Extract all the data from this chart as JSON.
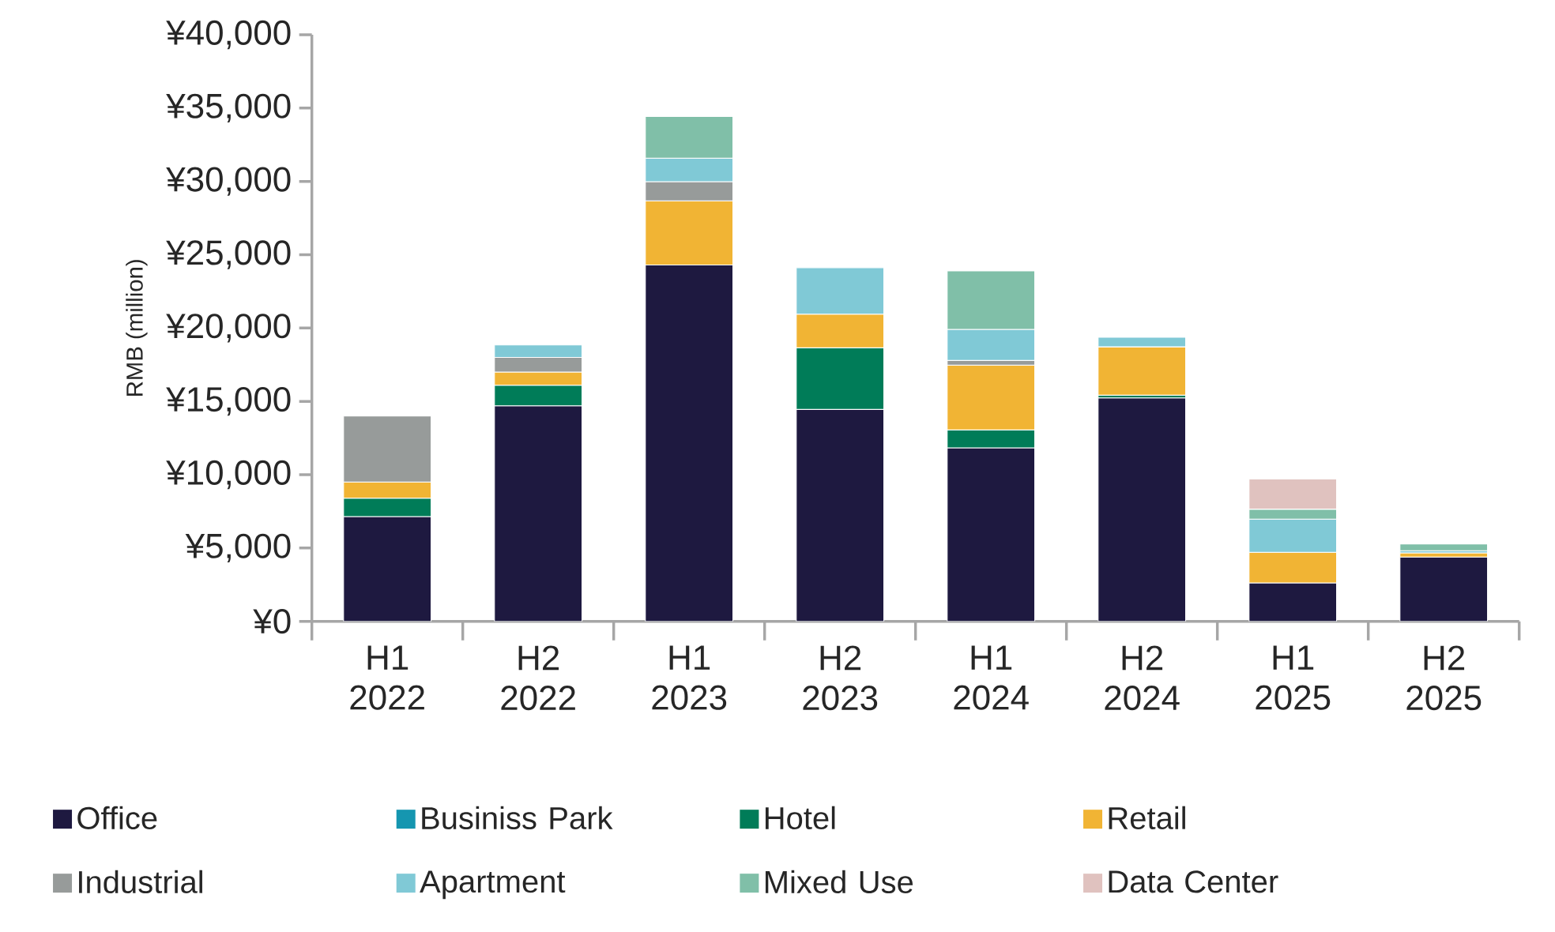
{
  "chart_data": {
    "type": "bar",
    "stacked": true,
    "ylabel": "RMB (million)",
    "categories": [
      "H1 2022",
      "H2 2022",
      "H1 2023",
      "H2 2023",
      "H1 2024",
      "H2 2024",
      "H1 2025",
      "H2 2025"
    ],
    "series": [
      {
        "name": "Office",
        "color": "#1e1940",
        "values": [
          7150,
          14700,
          24300,
          14450,
          11830,
          15240,
          2620,
          4390
        ]
      },
      {
        "name": "Businiss Park",
        "color": "#1596b0",
        "values": [
          null,
          null,
          null,
          null,
          null,
          null,
          null,
          null
        ]
      },
      {
        "name": "Hotel",
        "color": "#007c58",
        "values": [
          1250,
          1400,
          null,
          4200,
          1220,
          180,
          null,
          null
        ]
      },
      {
        "name": "Retail",
        "color": "#f1b434",
        "values": [
          1100,
          900,
          4380,
          2300,
          4420,
          3300,
          2090,
          280
        ]
      },
      {
        "name": "Industrial",
        "color": "#979b9a",
        "values": [
          4500,
          1000,
          1300,
          null,
          320,
          null,
          null,
          null
        ]
      },
      {
        "name": "Apartment",
        "color": "#80c9d6",
        "values": [
          null,
          850,
          1600,
          3170,
          2120,
          650,
          2260,
          150
        ]
      },
      {
        "name": "Mixed Use",
        "color": "#80bfa8",
        "values": [
          null,
          null,
          2850,
          null,
          3990,
          null,
          680,
          460
        ]
      },
      {
        "name": "Data Center",
        "color": "#e0c2bf",
        "values": [
          null,
          null,
          null,
          null,
          null,
          null,
          2050,
          null
        ]
      }
    ],
    "ylim": [
      0,
      40000
    ],
    "yticks": [
      {
        "value": 0,
        "label": "¥0"
      },
      {
        "value": 5000,
        "label": "¥5,000"
      },
      {
        "value": 10000,
        "label": "¥10,000"
      },
      {
        "value": 15000,
        "label": "¥15,000"
      },
      {
        "value": 20000,
        "label": "¥20,000"
      },
      {
        "value": 25000,
        "label": "¥25,000"
      },
      {
        "value": 30000,
        "label": "¥30,000"
      },
      {
        "value": 35000,
        "label": "¥35,000"
      },
      {
        "value": 40000,
        "label": "¥40,000"
      }
    ],
    "legend": "bottom"
  }
}
